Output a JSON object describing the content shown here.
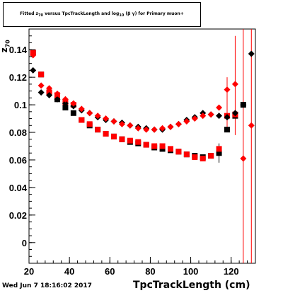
{
  "chart_data": {
    "type": "scatter",
    "title": "Fitted z_70 versus TpcTrackLength and log_10(β γ) for Primary muon+",
    "xlabel": "TpcTrackLength (cm)",
    "ylabel": "z_70",
    "xlim": [
      20,
      132
    ],
    "ylim": [
      -0.015,
      0.155
    ],
    "x_ticks": [
      20,
      40,
      60,
      80,
      100,
      120
    ],
    "y_ticks": [
      0,
      0.02,
      0.04,
      0.06,
      0.08,
      0.1,
      0.12,
      0.14
    ],
    "y_tick_labels": [
      "0",
      "0.02",
      "0.04",
      "0.06",
      "0.08",
      "0.1",
      "0.12",
      "0.14"
    ],
    "x_tick_labels": [
      "20",
      "40",
      "60",
      "80",
      "100",
      "120"
    ],
    "grid": false,
    "series": [
      {
        "marker": "diamond",
        "color": "#000000",
        "x": [
          22,
          26,
          30,
          34,
          38,
          42,
          46,
          50,
          54,
          58,
          62,
          66,
          70,
          74,
          78,
          82,
          86,
          90,
          94,
          98,
          102,
          106,
          110,
          114,
          118,
          122,
          126,
          130
        ],
        "y": [
          0.125,
          0.109,
          0.107,
          0.104,
          0.101,
          0.099,
          0.096,
          0.094,
          0.091,
          0.089,
          0.088,
          0.087,
          0.085,
          0.084,
          0.083,
          0.082,
          0.082,
          0.084,
          0.086,
          0.089,
          0.091,
          0.094,
          0.093,
          0.092,
          0.091,
          0.094,
          0.1,
          0.137
        ]
      },
      {
        "marker": "diamond",
        "color": "#ff0000",
        "x": [
          22,
          26,
          30,
          34,
          38,
          42,
          46,
          50,
          54,
          58,
          62,
          66,
          70,
          74,
          78,
          82,
          86,
          90,
          94,
          98,
          102,
          106,
          110,
          114,
          118,
          122,
          126,
          130
        ],
        "y": [
          0.136,
          0.114,
          0.112,
          0.108,
          0.104,
          0.101,
          0.097,
          0.094,
          0.092,
          0.09,
          0.088,
          0.086,
          0.085,
          0.083,
          0.082,
          0.082,
          0.083,
          0.084,
          0.086,
          0.088,
          0.09,
          0.092,
          0.093,
          0.098,
          0.111,
          0.115,
          0.061,
          0.085
        ]
      },
      {
        "marker": "square",
        "color": "#000000",
        "x": [
          22,
          26,
          30,
          34,
          38,
          42,
          46,
          50,
          54,
          58,
          62,
          66,
          70,
          74,
          78,
          82,
          86,
          90,
          94,
          98,
          102,
          106,
          110,
          114,
          118,
          122,
          126
        ],
        "y": [
          0.138,
          0.122,
          0.109,
          0.104,
          0.098,
          0.094,
          0.089,
          0.085,
          0.082,
          0.079,
          0.077,
          0.075,
          0.073,
          0.072,
          0.071,
          0.069,
          0.068,
          0.067,
          0.066,
          0.064,
          0.063,
          0.062,
          0.063,
          0.065,
          0.082,
          0.092,
          0.1
        ]
      },
      {
        "marker": "square",
        "color": "#ff0000",
        "x": [
          22,
          26,
          30,
          34,
          38,
          42,
          46,
          50,
          54,
          58,
          62,
          66,
          70,
          74,
          78,
          82,
          86,
          90,
          94,
          98,
          102,
          106,
          110,
          114,
          118,
          122
        ],
        "y": [
          0.138,
          0.122,
          0.109,
          0.107,
          0.102,
          0.1,
          0.089,
          0.086,
          0.082,
          0.079,
          0.077,
          0.075,
          0.074,
          0.073,
          0.071,
          0.07,
          0.07,
          0.068,
          0.066,
          0.064,
          0.062,
          0.061,
          0.063,
          0.068,
          0.092,
          0.093
        ]
      }
    ],
    "error_bars": [
      {
        "color": "#ff0000",
        "x": 122,
        "y_low": 0.078,
        "y_high": 0.15
      },
      {
        "color": "#ff0000",
        "x": 126,
        "y_low": -0.015,
        "y_high": 0.155
      },
      {
        "color": "#ff0000",
        "x": 130,
        "y_low": -0.015,
        "y_high": 0.155
      },
      {
        "color": "#ff0000",
        "x": 118,
        "y_low": 0.08,
        "y_high": 0.12
      },
      {
        "color": "#000000",
        "x": 114,
        "y_low": 0.058,
        "y_high": 0.072
      }
    ]
  },
  "labels": {
    "title_prefix": "Fitted  z",
    "title_sub": "70",
    "title_mid": "  versus  TpcTrackLength and log",
    "title_sub2": "10",
    "title_suffix": " (β γ) for Primary muon+",
    "ylabel_main": "z",
    "ylabel_sub": "70",
    "xlabel": "TpcTrackLength (cm)",
    "datestamp": "Wed Jun  7 18:16:02 2017"
  }
}
